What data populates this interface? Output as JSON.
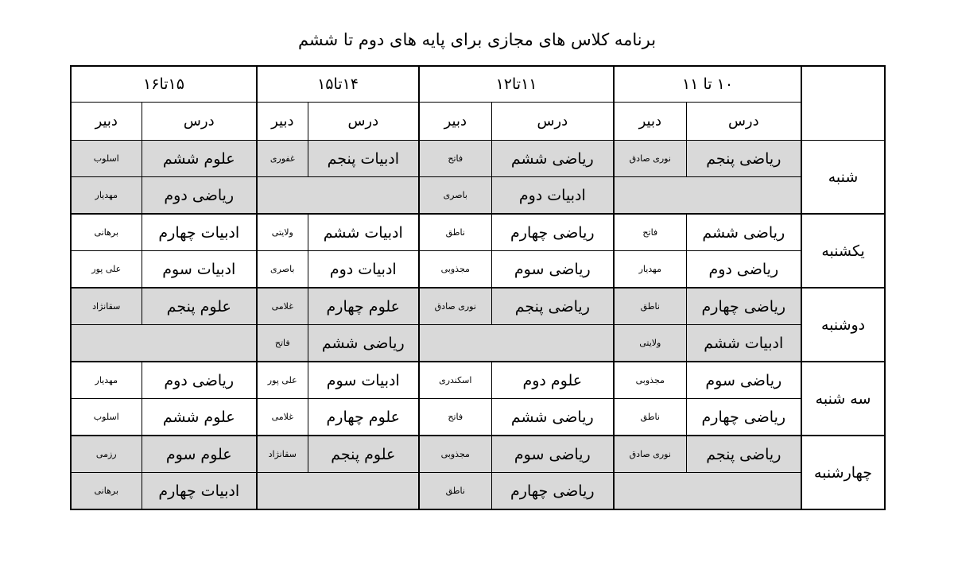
{
  "title": "برنامه کلاس های مجازی برای پایه های دوم تا ششم",
  "header": {
    "slots": [
      "۱۰ تا ۱۱",
      "۱۱تا۱۲",
      "۱۴تا۱۵",
      "۱۵تا۱۶"
    ],
    "lesson_label": "درس",
    "teacher_label": "دبیر"
  },
  "shading_color": "#d9d9d9",
  "days": [
    {
      "name": "شنبه",
      "shaded": true,
      "rows": [
        [
          {
            "lesson": "ریاضی پنجم",
            "teacher": "نوری صادق"
          },
          {
            "lesson": "ریاضی ششم",
            "teacher": "فاتح"
          },
          {
            "lesson": "ادبیات پنجم",
            "teacher": "غفوری"
          },
          {
            "lesson": "علوم ششم",
            "teacher": "اسلوب"
          }
        ],
        [
          null,
          {
            "lesson": "ادبیات دوم",
            "teacher": "باصری"
          },
          null,
          {
            "lesson": "ریاضی دوم",
            "teacher": "مهدیار"
          }
        ]
      ]
    },
    {
      "name": "یکشنبه",
      "shaded": false,
      "rows": [
        [
          {
            "lesson": "ریاضی ششم",
            "teacher": "فاتح"
          },
          {
            "lesson": "ریاضی چهارم",
            "teacher": "ناطق"
          },
          {
            "lesson": "ادبیات ششم",
            "teacher": "ولایتی"
          },
          {
            "lesson": "ادبیات چهارم",
            "teacher": "برهانی"
          }
        ],
        [
          {
            "lesson": "ریاضی دوم",
            "teacher": "مهدیار"
          },
          {
            "lesson": "ریاضی سوم",
            "teacher": "مجذوبی"
          },
          {
            "lesson": "ادبیات دوم",
            "teacher": "باصری"
          },
          {
            "lesson": "ادبیات سوم",
            "teacher": "علی پور"
          }
        ]
      ]
    },
    {
      "name": "دوشنبه",
      "shaded": true,
      "rows": [
        [
          {
            "lesson": "ریاضی چهارم",
            "teacher": "ناطق"
          },
          {
            "lesson": "ریاضی پنجم",
            "teacher": "نوری صادق"
          },
          {
            "lesson": "علوم چهارم",
            "teacher": "غلامی"
          },
          {
            "lesson": "علوم پنجم",
            "teacher": "سقانژاد"
          }
        ],
        [
          {
            "lesson": "ادبیات ششم",
            "teacher": "ولایتی"
          },
          null,
          {
            "lesson": "ریاضی ششم",
            "teacher": "فاتح"
          },
          null
        ]
      ]
    },
    {
      "name": "سه شنبه",
      "shaded": false,
      "rows": [
        [
          {
            "lesson": "ریاضی سوم",
            "teacher": "مجذوبی"
          },
          {
            "lesson": "علوم دوم",
            "teacher": "اسکندری"
          },
          {
            "lesson": "ادبیات سوم",
            "teacher": "علی پور"
          },
          {
            "lesson": "ریاضی دوم",
            "teacher": "مهدیار"
          }
        ],
        [
          {
            "lesson": "ریاضی چهارم",
            "teacher": "ناطق"
          },
          {
            "lesson": "ریاضی ششم",
            "teacher": "فاتح"
          },
          {
            "lesson": "علوم چهارم",
            "teacher": "غلامی"
          },
          {
            "lesson": "علوم ششم",
            "teacher": "اسلوب"
          }
        ]
      ]
    },
    {
      "name": "چهارشنبه",
      "shaded": true,
      "rows": [
        [
          {
            "lesson": "ریاضی پنجم",
            "teacher": "نوری صادق"
          },
          {
            "lesson": "ریاضی سوم",
            "teacher": "مجذوبی"
          },
          {
            "lesson": "علوم پنجم",
            "teacher": "سقانژاد"
          },
          {
            "lesson": "علوم سوم",
            "teacher": "رزمی"
          }
        ],
        [
          null,
          {
            "lesson": "ریاضی چهارم",
            "teacher": "ناطق"
          },
          null,
          {
            "lesson": "ادبیات چهارم",
            "teacher": "برهانی"
          }
        ]
      ]
    }
  ]
}
